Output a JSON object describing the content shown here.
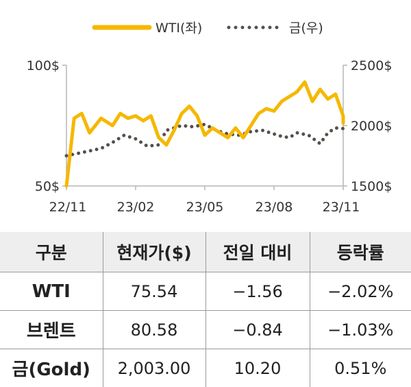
{
  "chart_data": {
    "type": "line",
    "legend_position": "top",
    "grid": false,
    "x_ticks": [
      "22/11",
      "23/02",
      "23/05",
      "23/08",
      "23/11"
    ],
    "y_left": {
      "ticks": [
        "100$",
        "50$"
      ],
      "ylim": [
        50,
        100
      ]
    },
    "y_right": {
      "ticks": [
        "2500$",
        "2000$",
        "1500$"
      ],
      "ylim": [
        1500,
        2500
      ]
    },
    "series": [
      {
        "name": "WTI(좌)",
        "axis": "left",
        "style": "solid",
        "color": "#F5B800",
        "x": [
          "22/11",
          "22/11",
          "22/11",
          "22/12",
          "22/12",
          "23/01",
          "23/01",
          "23/01",
          "23/02",
          "23/02",
          "23/02",
          "23/03",
          "23/03",
          "23/03",
          "23/04",
          "23/04",
          "23/04",
          "23/05",
          "23/05",
          "23/05",
          "23/06",
          "23/06",
          "23/06",
          "23/07",
          "23/07",
          "23/07",
          "23/08",
          "23/08",
          "23/08",
          "23/09",
          "23/09",
          "23/09",
          "23/10",
          "23/10",
          "23/10",
          "23/11",
          "23/11"
        ],
        "values": [
          50,
          78,
          80,
          72,
          78,
          75,
          80,
          78,
          79,
          77,
          79,
          70,
          67,
          73,
          80,
          83,
          79,
          71,
          74,
          72,
          70,
          74,
          70,
          75,
          80,
          82,
          81,
          85,
          87,
          89,
          93,
          85,
          90,
          86,
          88,
          79,
          76
        ]
      },
      {
        "name": "금(우)",
        "axis": "right",
        "style": "dotted",
        "color": "#55504A",
        "x": [
          "22/11",
          "22/11",
          "22/12",
          "22/12",
          "23/01",
          "23/01",
          "23/02",
          "23/02",
          "23/03",
          "23/03",
          "23/03",
          "23/04",
          "23/04",
          "23/05",
          "23/05",
          "23/06",
          "23/06",
          "23/07",
          "23/07",
          "23/08",
          "23/08",
          "23/08",
          "23/09",
          "23/09",
          "23/10",
          "23/10",
          "23/10",
          "23/11",
          "23/11"
        ],
        "values": [
          1750,
          1770,
          1790,
          1810,
          1860,
          1920,
          1890,
          1830,
          1840,
          1960,
          1980,
          2000,
          1990,
          2010,
          1960,
          1930,
          1920,
          1950,
          1960,
          1930,
          1910,
          1900,
          1940,
          1920,
          1850,
          1940,
          1980,
          1975,
          1990
        ]
      }
    ]
  },
  "table": {
    "headers": [
      "구분",
      "현재가($)",
      "전일 대비",
      "등락률"
    ],
    "rows": [
      [
        "WTI",
        "75.54",
        "−1.56",
        "−2.02%"
      ],
      [
        "브렌트",
        "80.58",
        "−0.84",
        "−1.03%"
      ],
      [
        "금(Gold)",
        "2,003.00",
        "10.20",
        "0.51%"
      ]
    ]
  }
}
